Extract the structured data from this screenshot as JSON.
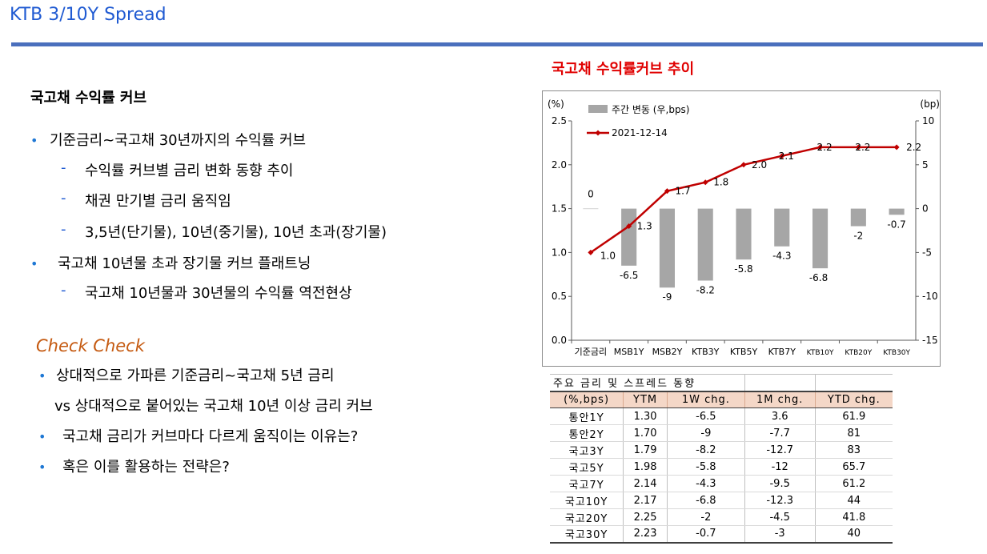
{
  "slide": {
    "title": "KTB 3/10Y Spread"
  },
  "left": {
    "heading": "국고채 수익률 커브",
    "bullets": [
      "기준금리~국고채 30년까지의 수익률 커브",
      "국고채 10년물 초과 장기물 커브 플래트닝"
    ],
    "sub_bullets": [
      "수익률 커브별 금리 변화 동향 추이",
      "채권 만기별 금리 움직임",
      "3,5년(단기물), 10년(중기물), 10년 초과(장기물)",
      "국고채 10년물과 30년물의 수익률  역전현상"
    ],
    "check_heading": "Check Check",
    "check_items": [
      "상대적으로 가파른 기준금리~국고채 5년 금리",
      "vs 상대적으로 붙어있는 국고채 10년 이상 금리 커브",
      "국고채 금리가 커브마다 다르게 움직이는 이유는?",
      "혹은 이를 활용하는 전략은?"
    ]
  },
  "chart_title": "국고채 수익률커브 추이",
  "chart_data": {
    "type": "bar+line",
    "categories": [
      "기준금리",
      "MSB1Y",
      "MSB2Y",
      "KTB3Y",
      "KTB5Y",
      "KTB7Y",
      "KTB10Y",
      "KTB20Y",
      "KTB30Y"
    ],
    "series": [
      {
        "name": "주간 변동 (우,bps)",
        "type": "bar",
        "axis": "right",
        "values": [
          0,
          -6.5,
          -9,
          -8.2,
          -5.8,
          -4.3,
          -6.8,
          -2,
          -0.7
        ],
        "labels": [
          "0",
          "-6.5",
          "-9",
          "-8.2",
          "-5.8",
          "-4.3",
          "-6.8",
          "-2",
          "-0.7"
        ],
        "color": "#a6a6a6"
      },
      {
        "name": "2021-12-14",
        "type": "line",
        "axis": "left",
        "values": [
          1.0,
          1.3,
          1.7,
          1.8,
          2.0,
          2.1,
          2.2,
          2.2,
          2.2
        ],
        "labels": [
          "1.0",
          "1.3",
          "1.7",
          "1.8",
          "2.0",
          "2.1",
          "2.2",
          "2.2",
          "2.2"
        ],
        "color": "#c00000"
      }
    ],
    "left_axis": {
      "unit": "(%)",
      "min": 0,
      "max": 2.5,
      "ticks": [
        "0.0",
        "0.5",
        "1.0",
        "1.5",
        "2.0",
        "2.5"
      ]
    },
    "right_axis": {
      "unit": "(bp)",
      "min": -15,
      "max": 10,
      "ticks": [
        "-15",
        "-10",
        "-5",
        "0",
        "5",
        "10"
      ]
    },
    "legend": "top-left",
    "grid": false
  },
  "table": {
    "title": "주요 금리 및 스프레드 동향",
    "columns": [
      "(%,bps)",
      "YTM",
      "1W chg.",
      "1M chg.",
      "YTD chg."
    ],
    "rows": [
      [
        "통안1Y",
        "1.30",
        "-6.5",
        "3.6",
        "61.9"
      ],
      [
        "통안2Y",
        "1.70",
        "-9",
        "-7.7",
        "81"
      ],
      [
        "국고3Y",
        "1.79",
        "-8.2",
        "-12.7",
        "83"
      ],
      [
        "국고5Y",
        "1.98",
        "-5.8",
        "-12",
        "65.7"
      ],
      [
        "국고7Y",
        "2.14",
        "-4.3",
        "-9.5",
        "61.2"
      ],
      [
        "국고10Y",
        "2.17",
        "-6.8",
        "-12.3",
        "44"
      ],
      [
        "국고20Y",
        "2.25",
        "-2",
        "-4.5",
        "41.8"
      ],
      [
        "국고30Y",
        "2.23",
        "-0.7",
        "-3",
        "40"
      ]
    ]
  }
}
